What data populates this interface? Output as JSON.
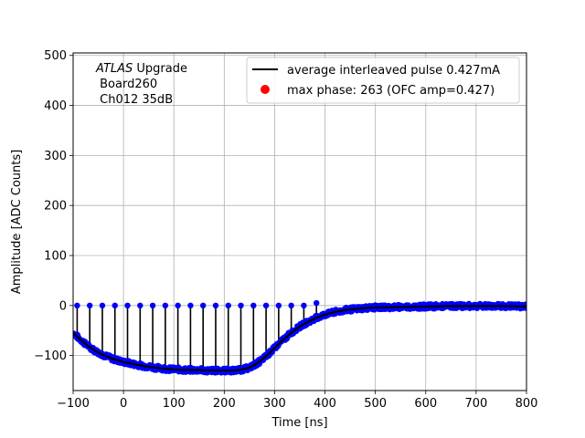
{
  "chart_data": {
    "type": "scatter",
    "xlabel": "Time [ns]",
    "ylabel": "Amplitude [ADC Counts]",
    "xlim": [
      -100,
      800
    ],
    "ylim": [
      -170,
      505
    ],
    "xticks": [
      -100,
      0,
      100,
      200,
      300,
      400,
      500,
      600,
      700,
      800
    ],
    "yticks": [
      -100,
      0,
      100,
      200,
      300,
      400,
      500
    ],
    "grid": true,
    "annotation": {
      "italic": "ATLAS",
      "rest": " Upgrade",
      "line2": " Board260",
      "line3": " Ch012 35dB"
    },
    "legend": {
      "placement": "top-right",
      "entries": [
        {
          "label": "average interleaved pulse 0.427mA",
          "marker": "line",
          "color": "#000000"
        },
        {
          "label": "max phase: 263 (OFC amp=0.427)",
          "marker": "dot",
          "color": "#ff0000"
        }
      ]
    },
    "colors": {
      "samples": "#0000ff",
      "average": "#000000",
      "max_phase": "#ff0000"
    },
    "average_pulse": {
      "x": [
        -100,
        -90,
        -80,
        -70,
        -60,
        -50,
        -40,
        -30,
        -20,
        -10,
        0,
        10,
        20,
        30,
        40,
        50,
        60,
        70,
        80,
        90,
        100,
        110,
        120,
        130,
        140,
        150,
        160,
        170,
        180,
        190,
        200,
        210,
        220,
        230,
        240,
        250,
        260,
        270,
        280,
        290,
        300,
        310,
        320,
        330,
        340,
        350,
        360,
        370,
        380,
        390,
        400,
        420,
        440,
        460,
        480,
        500,
        550,
        600,
        650,
        700,
        750,
        800
      ],
      "y": [
        -55,
        -64,
        -73,
        -81,
        -88,
        -94,
        -99,
        -103,
        -107,
        -110,
        -113,
        -115,
        -117,
        -119,
        -121,
        -122,
        -124,
        -125,
        -126,
        -127,
        -128,
        -128,
        -129,
        -129,
        -129,
        -129,
        -130,
        -130,
        -130,
        -130,
        -130,
        -130,
        -130,
        -129,
        -127,
        -124,
        -119,
        -112,
        -104,
        -95,
        -85,
        -75,
        -66,
        -57,
        -49,
        -42,
        -36,
        -31,
        -26,
        -22,
        -18,
        -13,
        -9,
        -7,
        -5,
        -4,
        -3,
        -2,
        -1,
        -1,
        -1,
        -2
      ]
    },
    "sample_spread": 5,
    "stems": {
      "x": [
        -92,
        -67,
        -42,
        -17,
        8,
        33,
        58,
        83,
        108,
        133,
        158,
        183,
        208,
        233,
        258,
        283,
        308,
        333,
        358,
        383
      ],
      "top": [
        0,
        0,
        0,
        0,
        0,
        0,
        0,
        0,
        0,
        0,
        0,
        0,
        0,
        0,
        0,
        0,
        0,
        0,
        0,
        5
      ]
    }
  }
}
